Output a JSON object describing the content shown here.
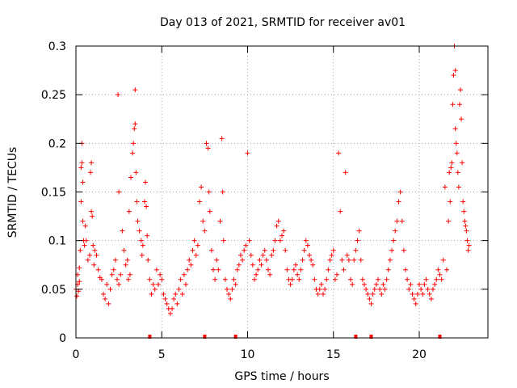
{
  "chart_data": {
    "type": "scatter",
    "title": "Day 013 of 2021, SRMTID for receiver av01",
    "xlabel": "GPS time / hours",
    "ylabel": "SRMTID / TECUs",
    "xlim": [
      0,
      24
    ],
    "ylim": [
      0,
      0.3
    ],
    "x_ticks": [
      0,
      5,
      10,
      15,
      20
    ],
    "x_tick_labels": [
      "0",
      "5",
      "10",
      "15",
      "20"
    ],
    "y_ticks": [
      0,
      0.05,
      0.1,
      0.15,
      0.2,
      0.25,
      0.3
    ],
    "y_tick_labels": [
      "0",
      "0.05",
      "0.1",
      "0.15",
      "0.2",
      "0.25",
      "0.3"
    ],
    "grid": true,
    "marker": "+",
    "color": "#ff0000",
    "note": "Dense per-satellite SRMTID samples; points below are a representative digitization of the visible scatter.",
    "series": [
      {
        "name": "SRMTID",
        "points": [
          [
            0.0,
            0.05
          ],
          [
            0.05,
            0.043
          ],
          [
            0.1,
            0.055
          ],
          [
            0.1,
            0.065
          ],
          [
            0.15,
            0.048
          ],
          [
            0.2,
            0.058
          ],
          [
            0.2,
            0.072
          ],
          [
            0.25,
            0.09
          ],
          [
            0.3,
            0.14
          ],
          [
            0.3,
            0.175
          ],
          [
            0.35,
            0.2
          ],
          [
            0.35,
            0.18
          ],
          [
            0.4,
            0.16
          ],
          [
            0.4,
            0.12
          ],
          [
            0.45,
            0.1
          ],
          [
            0.5,
            0.095
          ],
          [
            0.55,
            0.115
          ],
          [
            0.6,
            0.1
          ],
          [
            0.7,
            0.08
          ],
          [
            0.8,
            0.085
          ],
          [
            0.85,
            0.17
          ],
          [
            0.9,
            0.18
          ],
          [
            0.9,
            0.13
          ],
          [
            0.95,
            0.125
          ],
          [
            1.0,
            0.095
          ],
          [
            1.05,
            0.075
          ],
          [
            1.1,
            0.09
          ],
          [
            1.2,
            0.085
          ],
          [
            1.3,
            0.07
          ],
          [
            1.4,
            0.062
          ],
          [
            1.5,
            0.06
          ],
          [
            1.6,
            0.045
          ],
          [
            1.7,
            0.04
          ],
          [
            1.8,
            0.055
          ],
          [
            1.9,
            0.035
          ],
          [
            2.0,
            0.05
          ],
          [
            2.1,
            0.065
          ],
          [
            2.2,
            0.07
          ],
          [
            2.3,
            0.08
          ],
          [
            2.4,
            0.06
          ],
          [
            2.45,
            0.25
          ],
          [
            2.5,
            0.15
          ],
          [
            2.5,
            0.055
          ],
          [
            2.6,
            0.065
          ],
          [
            2.7,
            0.11
          ],
          [
            2.8,
            0.09
          ],
          [
            2.9,
            0.075
          ],
          [
            3.0,
            0.08
          ],
          [
            3.05,
            0.06
          ],
          [
            3.1,
            0.13
          ],
          [
            3.15,
            0.065
          ],
          [
            3.2,
            0.165
          ],
          [
            3.3,
            0.19
          ],
          [
            3.35,
            0.2
          ],
          [
            3.4,
            0.215
          ],
          [
            3.45,
            0.255
          ],
          [
            3.45,
            0.22
          ],
          [
            3.5,
            0.17
          ],
          [
            3.55,
            0.14
          ],
          [
            3.6,
            0.12
          ],
          [
            3.7,
            0.11
          ],
          [
            3.8,
            0.1
          ],
          [
            3.85,
            0.085
          ],
          [
            3.9,
            0.095
          ],
          [
            4.0,
            0.14
          ],
          [
            4.05,
            0.16
          ],
          [
            4.1,
            0.135
          ],
          [
            4.15,
            0.105
          ],
          [
            4.2,
            0.08
          ],
          [
            4.3,
            0.06
          ],
          [
            4.4,
            0.045
          ],
          [
            4.5,
            0.055
          ],
          [
            4.6,
            0.05
          ],
          [
            4.7,
            0.07
          ],
          [
            4.8,
            0.055
          ],
          [
            4.9,
            0.065
          ],
          [
            5.0,
            0.06
          ],
          [
            5.1,
            0.045
          ],
          [
            5.2,
            0.04
          ],
          [
            5.3,
            0.035
          ],
          [
            5.4,
            0.03
          ],
          [
            5.5,
            0.025
          ],
          [
            5.6,
            0.03
          ],
          [
            5.7,
            0.04
          ],
          [
            5.8,
            0.045
          ],
          [
            5.9,
            0.035
          ],
          [
            6.0,
            0.05
          ],
          [
            6.1,
            0.06
          ],
          [
            6.2,
            0.045
          ],
          [
            6.3,
            0.065
          ],
          [
            6.4,
            0.055
          ],
          [
            6.5,
            0.07
          ],
          [
            6.6,
            0.08
          ],
          [
            6.7,
            0.075
          ],
          [
            6.8,
            0.09
          ],
          [
            6.9,
            0.1
          ],
          [
            7.0,
            0.085
          ],
          [
            7.1,
            0.095
          ],
          [
            7.2,
            0.14
          ],
          [
            7.3,
            0.155
          ],
          [
            7.4,
            0.12
          ],
          [
            7.5,
            0.11
          ],
          [
            7.6,
            0.2
          ],
          [
            7.7,
            0.195
          ],
          [
            7.75,
            0.15
          ],
          [
            7.8,
            0.13
          ],
          [
            7.9,
            0.09
          ],
          [
            8.0,
            0.07
          ],
          [
            8.1,
            0.06
          ],
          [
            8.2,
            0.08
          ],
          [
            8.3,
            0.07
          ],
          [
            8.4,
            0.12
          ],
          [
            8.5,
            0.205
          ],
          [
            8.55,
            0.15
          ],
          [
            8.6,
            0.1
          ],
          [
            8.7,
            0.06
          ],
          [
            8.8,
            0.05
          ],
          [
            8.9,
            0.045
          ],
          [
            9.0,
            0.04
          ],
          [
            9.1,
            0.05
          ],
          [
            9.2,
            0.06
          ],
          [
            9.3,
            0.055
          ],
          [
            9.4,
            0.07
          ],
          [
            9.5,
            0.075
          ],
          [
            9.6,
            0.085
          ],
          [
            9.7,
            0.08
          ],
          [
            9.8,
            0.09
          ],
          [
            9.9,
            0.095
          ],
          [
            10.0,
            0.19
          ],
          [
            10.1,
            0.1
          ],
          [
            10.2,
            0.085
          ],
          [
            10.3,
            0.075
          ],
          [
            10.4,
            0.06
          ],
          [
            10.5,
            0.065
          ],
          [
            10.6,
            0.07
          ],
          [
            10.7,
            0.08
          ],
          [
            10.8,
            0.075
          ],
          [
            10.9,
            0.085
          ],
          [
            11.0,
            0.09
          ],
          [
            11.1,
            0.08
          ],
          [
            11.2,
            0.07
          ],
          [
            11.3,
            0.065
          ],
          [
            11.4,
            0.085
          ],
          [
            11.5,
            0.09
          ],
          [
            11.6,
            0.1
          ],
          [
            11.7,
            0.115
          ],
          [
            11.8,
            0.12
          ],
          [
            11.9,
            0.1
          ],
          [
            12.0,
            0.105
          ],
          [
            12.1,
            0.11
          ],
          [
            12.2,
            0.09
          ],
          [
            12.3,
            0.07
          ],
          [
            12.4,
            0.06
          ],
          [
            12.5,
            0.055
          ],
          [
            12.6,
            0.06
          ],
          [
            12.7,
            0.07
          ],
          [
            12.8,
            0.075
          ],
          [
            12.9,
            0.065
          ],
          [
            13.0,
            0.06
          ],
          [
            13.1,
            0.07
          ],
          [
            13.2,
            0.08
          ],
          [
            13.3,
            0.09
          ],
          [
            13.4,
            0.1
          ],
          [
            13.5,
            0.095
          ],
          [
            13.6,
            0.085
          ],
          [
            13.7,
            0.08
          ],
          [
            13.8,
            0.075
          ],
          [
            13.9,
            0.06
          ],
          [
            14.0,
            0.05
          ],
          [
            14.1,
            0.045
          ],
          [
            14.2,
            0.05
          ],
          [
            14.3,
            0.055
          ],
          [
            14.4,
            0.045
          ],
          [
            14.5,
            0.05
          ],
          [
            14.6,
            0.06
          ],
          [
            14.7,
            0.07
          ],
          [
            14.8,
            0.08
          ],
          [
            14.9,
            0.085
          ],
          [
            15.0,
            0.09
          ],
          [
            15.1,
            0.06
          ],
          [
            15.2,
            0.065
          ],
          [
            15.3,
            0.19
          ],
          [
            15.4,
            0.13
          ],
          [
            15.5,
            0.08
          ],
          [
            15.6,
            0.07
          ],
          [
            15.7,
            0.17
          ],
          [
            15.8,
            0.085
          ],
          [
            15.9,
            0.08
          ],
          [
            16.0,
            0.06
          ],
          [
            16.1,
            0.055
          ],
          [
            16.2,
            0.08
          ],
          [
            16.3,
            0.09
          ],
          [
            16.4,
            0.1
          ],
          [
            16.5,
            0.11
          ],
          [
            16.6,
            0.08
          ],
          [
            16.7,
            0.06
          ],
          [
            16.8,
            0.055
          ],
          [
            16.9,
            0.05
          ],
          [
            17.0,
            0.045
          ],
          [
            17.1,
            0.04
          ],
          [
            17.2,
            0.035
          ],
          [
            17.3,
            0.045
          ],
          [
            17.4,
            0.05
          ],
          [
            17.5,
            0.055
          ],
          [
            17.6,
            0.06
          ],
          [
            17.7,
            0.05
          ],
          [
            17.8,
            0.045
          ],
          [
            17.9,
            0.055
          ],
          [
            18.0,
            0.05
          ],
          [
            18.1,
            0.06
          ],
          [
            18.2,
            0.07
          ],
          [
            18.3,
            0.08
          ],
          [
            18.4,
            0.09
          ],
          [
            18.5,
            0.1
          ],
          [
            18.6,
            0.11
          ],
          [
            18.7,
            0.12
          ],
          [
            18.8,
            0.14
          ],
          [
            18.9,
            0.15
          ],
          [
            19.0,
            0.12
          ],
          [
            19.1,
            0.09
          ],
          [
            19.2,
            0.07
          ],
          [
            19.3,
            0.06
          ],
          [
            19.4,
            0.05
          ],
          [
            19.5,
            0.055
          ],
          [
            19.6,
            0.045
          ],
          [
            19.7,
            0.04
          ],
          [
            19.8,
            0.035
          ],
          [
            19.9,
            0.045
          ],
          [
            20.0,
            0.055
          ],
          [
            20.1,
            0.05
          ],
          [
            20.2,
            0.045
          ],
          [
            20.3,
            0.055
          ],
          [
            20.4,
            0.06
          ],
          [
            20.5,
            0.05
          ],
          [
            20.6,
            0.045
          ],
          [
            20.7,
            0.04
          ],
          [
            20.8,
            0.05
          ],
          [
            20.9,
            0.055
          ],
          [
            21.0,
            0.06
          ],
          [
            21.1,
            0.07
          ],
          [
            21.2,
            0.065
          ],
          [
            21.3,
            0.06
          ],
          [
            21.4,
            0.08
          ],
          [
            21.5,
            0.155
          ],
          [
            21.6,
            0.07
          ],
          [
            21.7,
            0.12
          ],
          [
            21.75,
            0.17
          ],
          [
            21.8,
            0.14
          ],
          [
            21.85,
            0.175
          ],
          [
            21.9,
            0.18
          ],
          [
            21.95,
            0.24
          ],
          [
            22.0,
            0.27
          ],
          [
            22.05,
            0.3
          ],
          [
            22.1,
            0.275
          ],
          [
            22.1,
            0.215
          ],
          [
            22.15,
            0.2
          ],
          [
            22.2,
            0.19
          ],
          [
            22.25,
            0.17
          ],
          [
            22.3,
            0.155
          ],
          [
            22.35,
            0.24
          ],
          [
            22.4,
            0.255
          ],
          [
            22.45,
            0.225
          ],
          [
            22.5,
            0.18
          ],
          [
            22.55,
            0.14
          ],
          [
            22.6,
            0.13
          ],
          [
            22.65,
            0.12
          ],
          [
            22.7,
            0.115
          ],
          [
            22.75,
            0.11
          ],
          [
            22.8,
            0.1
          ],
          [
            22.85,
            0.09
          ],
          [
            22.9,
            0.095
          ]
        ]
      }
    ],
    "gap_markers_x": [
      4.3,
      7.5,
      9.3,
      16.3,
      17.2,
      21.2
    ]
  }
}
